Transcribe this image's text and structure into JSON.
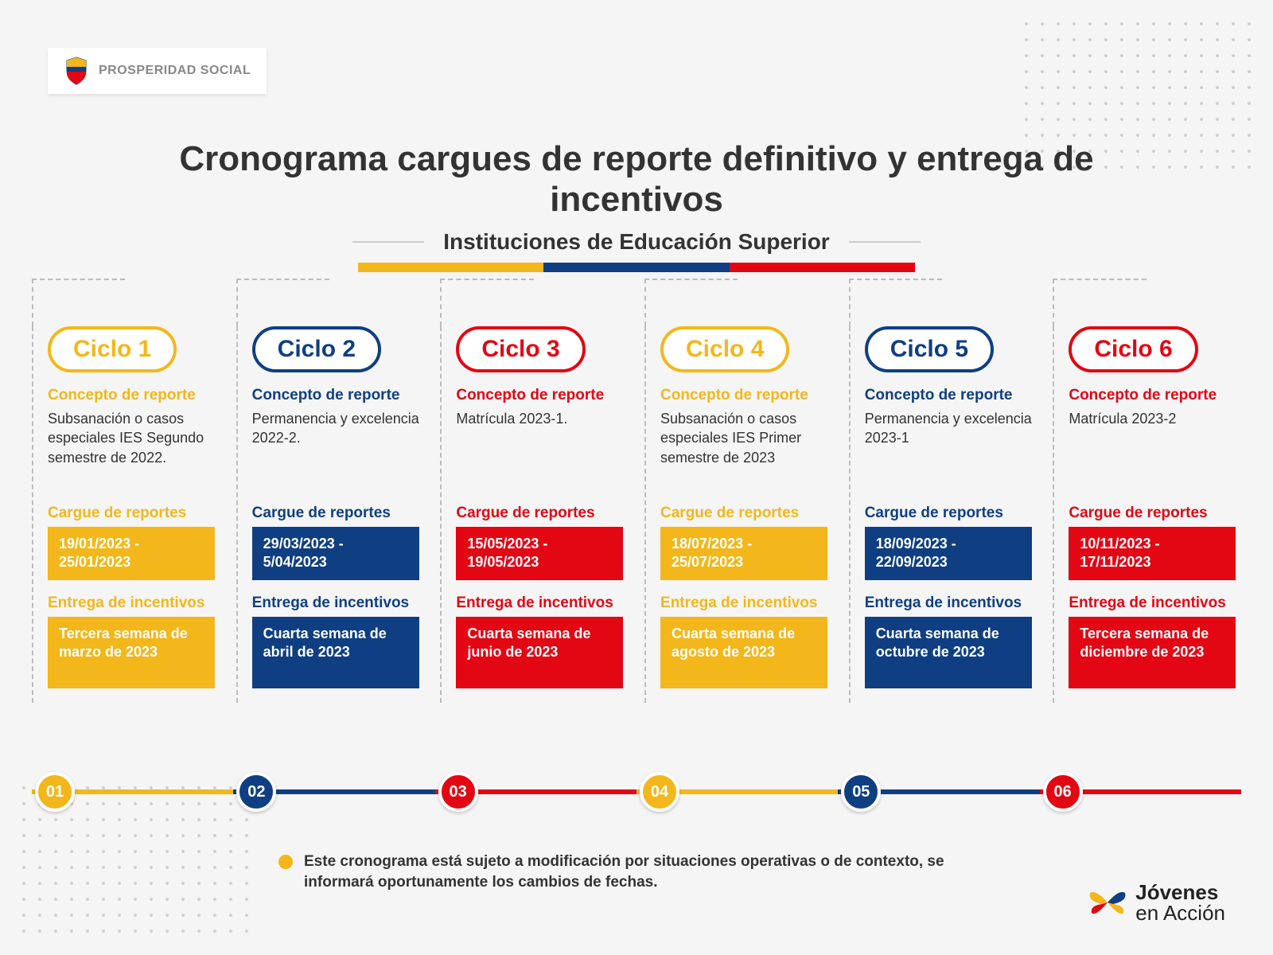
{
  "colors": {
    "yellow": "#f3b71b",
    "blue": "#0f3f82",
    "red": "#e30613",
    "text": "#333333",
    "gray": "#888888"
  },
  "header": {
    "org": "PROSPERIDAD SOCIAL"
  },
  "title": {
    "line": "Cronograma cargues de reporte definitivo y entrega de incentivos",
    "subtitle": "Instituciones de Educación Superior"
  },
  "labels": {
    "concepto": "Concepto de reporte",
    "cargue": "Cargue de reportes",
    "entrega": "Entrega de incentivos"
  },
  "cycles": [
    {
      "num": "01",
      "name": "Ciclo 1",
      "color": "#f3b71b",
      "concepto": "Subsanación o casos especiales IES Segundo semestre de 2022.",
      "cargue": "19/01/2023  - 25/01/2023",
      "entrega": "Tercera semana de marzo de 2023"
    },
    {
      "num": "02",
      "name": "Ciclo 2",
      "color": "#0f3f82",
      "concepto": "Permanencia y excelencia 2022-2.",
      "cargue": "29/03/2023  - 5/04/2023",
      "entrega": "Cuarta semana de abril de 2023"
    },
    {
      "num": "03",
      "name": "Ciclo 3",
      "color": "#e30613",
      "concepto": "Matrícula 2023-1.",
      "cargue": "15/05/2023  - 19/05/2023",
      "entrega": "Cuarta semana de junio de 2023"
    },
    {
      "num": "04",
      "name": "Ciclo 4",
      "color": "#f3b71b",
      "concepto": "Subsanación o casos especiales IES Primer semestre de 2023",
      "cargue": "18/07/2023  - 25/07/2023",
      "entrega": "Cuarta semana de agosto de 2023"
    },
    {
      "num": "05",
      "name": "Ciclo 5",
      "color": "#0f3f82",
      "concepto": "Permanencia y excelencia 2023-1",
      "cargue": "18/09/2023 - 22/09/2023",
      "entrega": "Cuarta semana de octubre de 2023"
    },
    {
      "num": "06",
      "name": "Ciclo 6",
      "color": "#e30613",
      "concepto": "Matrícula 2023-2",
      "cargue": "10/11/2023  - 17/11/2023",
      "entrega": "Tercera semana de diciembre de 2023"
    }
  ],
  "footnote": "Este cronograma está sujeto a modificación por situaciones operativas o de contexto, se informará oportunamente los cambios de fechas.",
  "footer": {
    "brand1": "Jóvenes",
    "brand2": "en Acción"
  }
}
